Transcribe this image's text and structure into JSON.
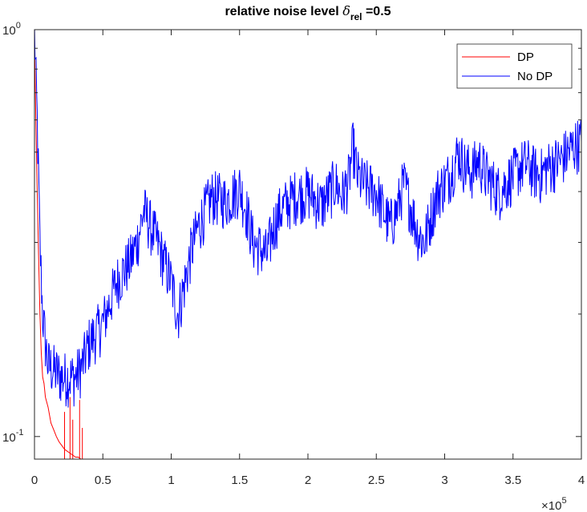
{
  "chart_data": {
    "type": "line",
    "title": {
      "prefix": "relative noise level ",
      "symbol": "δ",
      "subscript": "rel",
      "suffix": " =0.5"
    },
    "xlabel": "",
    "ylabel": "",
    "xlim": [
      0,
      400000
    ],
    "ylim": [
      0.088,
      1.0
    ],
    "yscale": "log",
    "x_exponent_label": {
      "times": "×",
      "base": "10",
      "exp": "5"
    },
    "xticks": [
      0,
      50000,
      100000,
      150000,
      200000,
      250000,
      300000,
      350000,
      400000
    ],
    "xtick_labels": [
      "0",
      "0.5",
      "1",
      "1.5",
      "2",
      "2.5",
      "3",
      "3.5",
      "4"
    ],
    "yticks_major": [
      {
        "value": 0.1,
        "base": "10",
        "exp": "-1"
      },
      {
        "value": 1.0,
        "base": "10",
        "exp": "0"
      }
    ],
    "yticks_minor": [
      0.2,
      0.3,
      0.4,
      0.5,
      0.6,
      0.7,
      0.8,
      0.9
    ],
    "grid": false,
    "legend_position": "top-right",
    "series": [
      {
        "name": "DP",
        "color": "#ff0000",
        "x": [
          0,
          1000,
          2000,
          3000,
          4000,
          5000,
          6000,
          7000,
          8000,
          10000,
          12000,
          14000,
          16000,
          18000,
          20000,
          22000,
          24000,
          26000,
          28000,
          30000,
          32000,
          34000,
          36000,
          40000,
          100000,
          200000,
          300000,
          400000
        ],
        "y": [
          0.95,
          0.6,
          0.4,
          0.28,
          0.2,
          0.16,
          0.14,
          0.135,
          0.125,
          0.118,
          0.108,
          0.104,
          0.1,
          0.097,
          0.095,
          0.093,
          0.092,
          0.091,
          0.09,
          0.089,
          0.089,
          0.088,
          0.088,
          0.088,
          0.088,
          0.088,
          0.088,
          0.088
        ]
      },
      {
        "name": "No DP",
        "color": "#0000ff",
        "x": [
          0,
          2000,
          4000,
          6000,
          8000,
          10000,
          15000,
          20000,
          25000,
          30000,
          35000,
          40000,
          50000,
          60000,
          70000,
          75000,
          80000,
          90000,
          100000,
          105000,
          110000,
          115000,
          120000,
          125000,
          130000,
          140000,
          150000,
          155000,
          160000,
          165000,
          170000,
          175000,
          180000,
          190000,
          200000,
          210000,
          220000,
          225000,
          230000,
          233000,
          236000,
          240000,
          250000,
          255000,
          260000,
          265000,
          270000,
          275000,
          280000,
          285000,
          290000,
          295000,
          300000,
          305000,
          310000,
          315000,
          320000,
          325000,
          330000,
          335000,
          340000,
          345000,
          350000,
          355000,
          360000,
          365000,
          370000,
          375000,
          380000,
          385000,
          390000,
          395000,
          400000
        ],
        "y": [
          1.0,
          0.6,
          0.3,
          0.2,
          0.17,
          0.15,
          0.145,
          0.14,
          0.14,
          0.14,
          0.15,
          0.17,
          0.19,
          0.24,
          0.27,
          0.3,
          0.36,
          0.3,
          0.24,
          0.2,
          0.24,
          0.29,
          0.33,
          0.36,
          0.39,
          0.38,
          0.41,
          0.36,
          0.3,
          0.29,
          0.28,
          0.33,
          0.36,
          0.39,
          0.4,
          0.37,
          0.42,
          0.39,
          0.43,
          0.52,
          0.44,
          0.42,
          0.4,
          0.36,
          0.33,
          0.36,
          0.42,
          0.37,
          0.32,
          0.3,
          0.35,
          0.4,
          0.42,
          0.45,
          0.5,
          0.46,
          0.45,
          0.48,
          0.44,
          0.42,
          0.4,
          0.42,
          0.44,
          0.46,
          0.47,
          0.45,
          0.44,
          0.46,
          0.47,
          0.48,
          0.5,
          0.52,
          0.53
        ]
      }
    ]
  }
}
